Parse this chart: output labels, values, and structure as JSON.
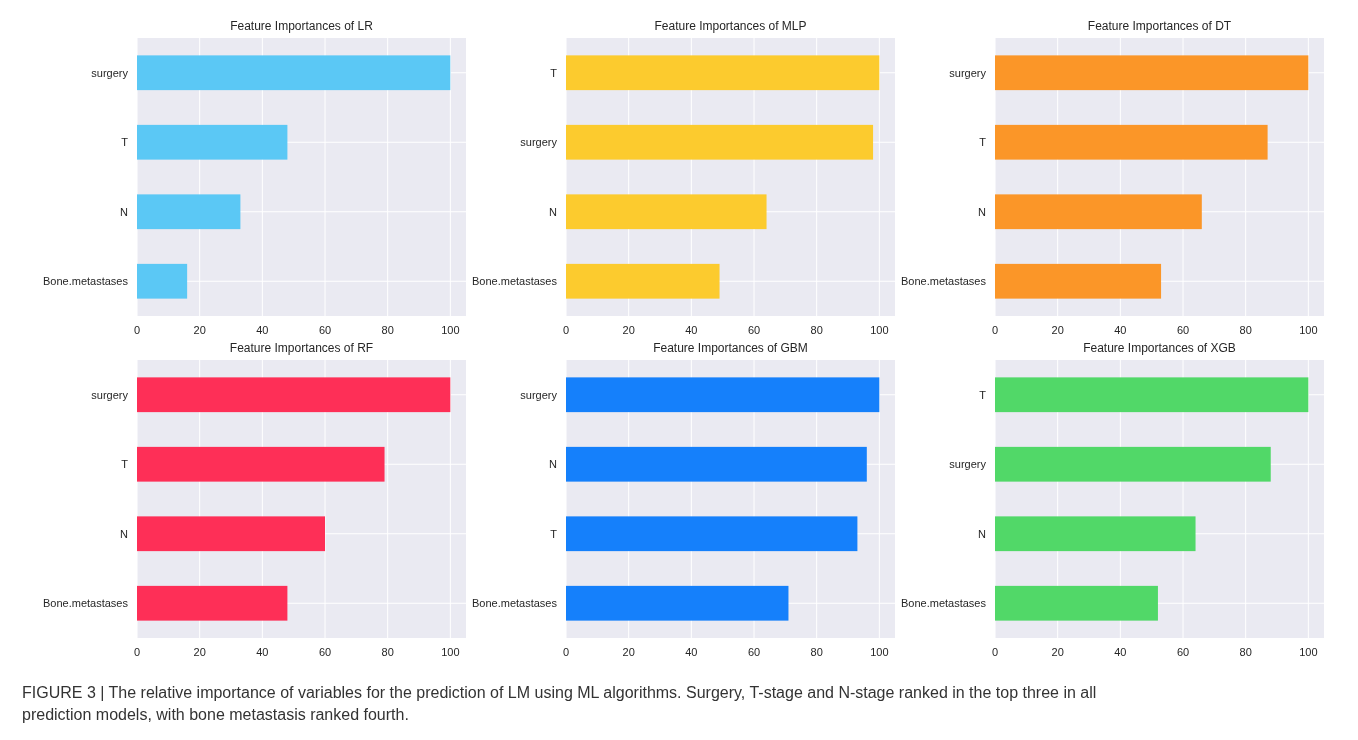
{
  "chart_data": [
    {
      "type": "bar",
      "orientation": "horizontal",
      "title": "Feature Importances of LR",
      "categories": [
        "surgery",
        "T",
        "N",
        "Bone.metastases"
      ],
      "values": [
        100,
        48,
        33,
        16
      ],
      "color": "#5bc8f5",
      "xlim": [
        0,
        105
      ],
      "xticks": [
        0,
        20,
        40,
        60,
        80,
        100
      ],
      "grid": true
    },
    {
      "type": "bar",
      "orientation": "horizontal",
      "title": "Feature Importances of MLP",
      "categories": [
        "T",
        "surgery",
        "N",
        "Bone.metastases"
      ],
      "values": [
        100,
        98,
        64,
        49
      ],
      "color": "#fccb2e",
      "xlim": [
        0,
        105
      ],
      "xticks": [
        0,
        20,
        40,
        60,
        80,
        100
      ],
      "grid": true
    },
    {
      "type": "bar",
      "orientation": "horizontal",
      "title": "Feature Importances of DT",
      "categories": [
        "surgery",
        "T",
        "N",
        "Bone.metastases"
      ],
      "values": [
        100,
        87,
        66,
        53
      ],
      "color": "#fb9628",
      "xlim": [
        0,
        105
      ],
      "xticks": [
        0,
        20,
        40,
        60,
        80,
        100
      ],
      "grid": true
    },
    {
      "type": "bar",
      "orientation": "horizontal",
      "title": "Feature Importances of RF",
      "categories": [
        "surgery",
        "T",
        "N",
        "Bone.metastases"
      ],
      "values": [
        100,
        79,
        60,
        48
      ],
      "color": "#fe2f57",
      "xlim": [
        0,
        105
      ],
      "xticks": [
        0,
        20,
        40,
        60,
        80,
        100
      ],
      "grid": true
    },
    {
      "type": "bar",
      "orientation": "horizontal",
      "title": "Feature Importances of GBM",
      "categories": [
        "surgery",
        "N",
        "T",
        "Bone.metastases"
      ],
      "values": [
        100,
        96,
        93,
        71
      ],
      "color": "#1580fb",
      "xlim": [
        0,
        105
      ],
      "xticks": [
        0,
        20,
        40,
        60,
        80,
        100
      ],
      "grid": true
    },
    {
      "type": "bar",
      "orientation": "horizontal",
      "title": "Feature Importances of XGB",
      "categories": [
        "T",
        "surgery",
        "N",
        "Bone.metastases"
      ],
      "values": [
        100,
        88,
        64,
        52
      ],
      "color": "#51d868",
      "xlim": [
        0,
        105
      ],
      "xticks": [
        0,
        20,
        40,
        60,
        80,
        100
      ],
      "grid": true,
      "annotations": [
        "FIGURE 3 | The relative importance of variables for the prediction of LM using ML algorithms. Surgery, T-stage and N-stage ranked in the top three in all prediction models, with bone metastasis ranked fourth."
      ]
    }
  ]
}
